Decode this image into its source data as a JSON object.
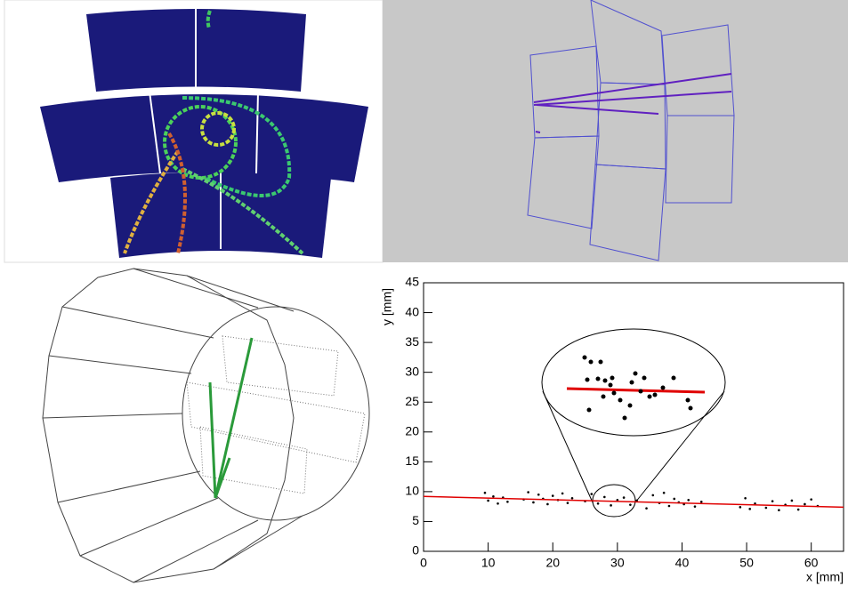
{
  "chart_data": {
    "type": "scatter",
    "x_label": "x [mm]",
    "y_label": "y [mm]",
    "xlim": [
      0,
      65
    ],
    "ylim": [
      0,
      45
    ],
    "xticks": [
      0,
      10,
      20,
      30,
      40,
      50,
      60
    ],
    "yticks": [
      0,
      5,
      10,
      15,
      20,
      25,
      30,
      35,
      40,
      45
    ],
    "color": "#000000",
    "x": [
      9.5,
      10,
      10.8,
      11.5,
      12.3,
      13,
      15.5,
      16.2,
      17,
      17.8,
      18.5,
      19.2,
      20,
      20.8,
      21.5,
      22.3,
      23,
      25,
      26,
      27,
      28,
      29,
      30,
      31,
      32,
      33,
      34.5,
      35.5,
      36.5,
      37.2,
      38,
      38.8,
      39.5,
      40.3,
      41,
      42,
      43,
      49,
      49.8,
      50.5,
      51.3,
      53,
      54,
      55,
      56,
      57,
      58,
      59,
      60,
      61
    ],
    "values": [
      9.8,
      8.5,
      9.2,
      8.0,
      9.0,
      8.3,
      8.7,
      9.9,
      8.2,
      9.5,
      8.8,
      7.9,
      9.3,
      8.6,
      9.7,
      8.1,
      8.9,
      8.4,
      9.6,
      8.0,
      9.1,
      7.7,
      8.6,
      9.0,
      7.8,
      8.5,
      7.2,
      9.4,
      8.1,
      9.8,
      7.6,
      8.8,
      8.2,
      7.9,
      8.6,
      7.5,
      8.3,
      7.4,
      8.9,
      7.1,
      8.0,
      7.3,
      8.4,
      6.9,
      7.8,
      8.5,
      7.0,
      7.9,
      8.7,
      7.6
    ],
    "fit": {
      "x": [
        0,
        65
      ],
      "values": [
        9.2,
        7.4
      ],
      "color": "#e00000"
    }
  }
}
